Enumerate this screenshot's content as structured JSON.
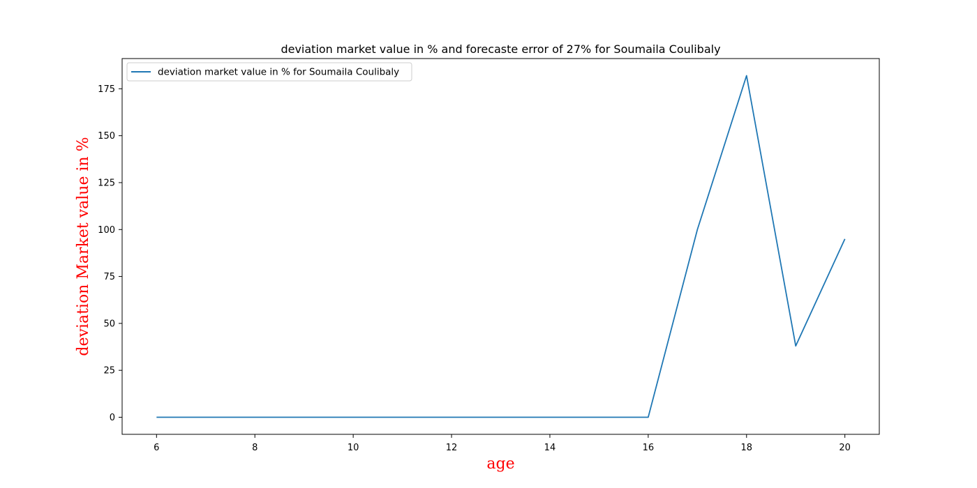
{
  "chart_data": {
    "type": "line",
    "title": "deviation market value in % and forecaste error of 27% for Soumaila Coulibaly",
    "xlabel": "age",
    "ylabel": "deviation Market value in %",
    "axis_label_color": "#ff0000",
    "xlim": [
      5.3,
      20.7
    ],
    "ylim": [
      -9.1,
      191.1
    ],
    "xticks": [
      6,
      8,
      10,
      12,
      14,
      16,
      18,
      20
    ],
    "yticks": [
      0,
      25,
      50,
      75,
      100,
      125,
      150,
      175
    ],
    "grid": false,
    "legend_position": "upper left",
    "series": [
      {
        "name": "deviation market value in % for Soumaila Coulibaly",
        "color": "#1f77b4",
        "x": [
          6,
          7,
          8,
          9,
          10,
          11,
          12,
          13,
          14,
          15,
          16,
          17,
          18,
          19,
          20
        ],
        "y": [
          0,
          0,
          0,
          0,
          0,
          0,
          0,
          0,
          0,
          0,
          0,
          100,
          182,
          38,
          95
        ]
      }
    ]
  }
}
